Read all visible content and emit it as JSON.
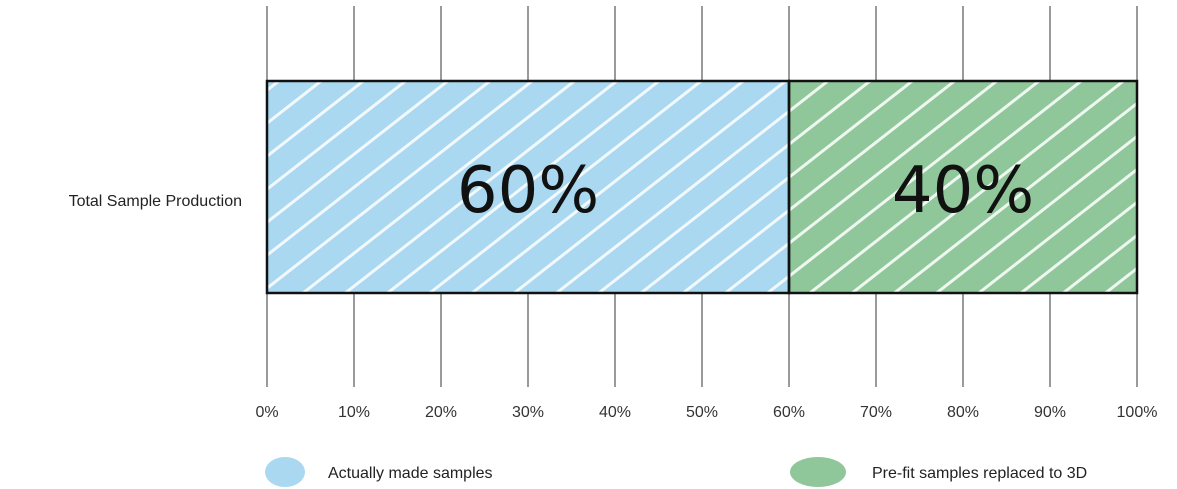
{
  "chart_data": {
    "type": "bar",
    "orientation": "horizontal",
    "stacked": true,
    "categories": [
      "Total Sample Production"
    ],
    "series": [
      {
        "name": "Actually made samples",
        "values": [
          60
        ],
        "color": "#a9d8f0",
        "data_label": "60%"
      },
      {
        "name": "Pre-fit samples replaced to 3D",
        "values": [
          40
        ],
        "color": "#8fc79a",
        "data_label": "40%"
      }
    ],
    "xlim": [
      0,
      100
    ],
    "x_ticks": [
      "0%",
      "10%",
      "20%",
      "30%",
      "40%",
      "50%",
      "60%",
      "70%",
      "80%",
      "90%",
      "100%"
    ],
    "grid": true,
    "legend_position": "bottom"
  }
}
